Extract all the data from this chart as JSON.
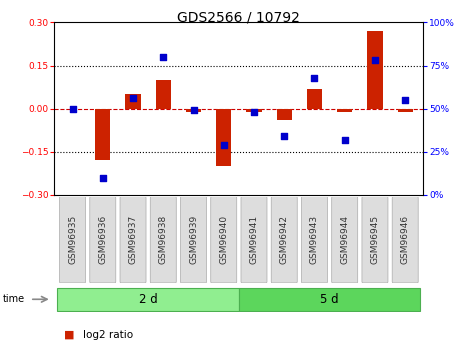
{
  "title": "GDS2566 / 10792",
  "samples": [
    "GSM96935",
    "GSM96936",
    "GSM96937",
    "GSM96938",
    "GSM96939",
    "GSM96940",
    "GSM96941",
    "GSM96942",
    "GSM96943",
    "GSM96944",
    "GSM96945",
    "GSM96946"
  ],
  "log2_ratio": [
    0.0,
    -0.18,
    0.05,
    0.1,
    -0.01,
    -0.2,
    -0.01,
    -0.04,
    0.07,
    -0.01,
    0.27,
    -0.01
  ],
  "percentile_rank": [
    50,
    10,
    56,
    80,
    49,
    29,
    48,
    34,
    68,
    32,
    78,
    55
  ],
  "groups": [
    {
      "label": "2 d",
      "start": 0,
      "end": 6,
      "color": "#90EE90",
      "edge": "#4CAF50"
    },
    {
      "label": "5 d",
      "start": 6,
      "end": 12,
      "color": "#5CD65C",
      "edge": "#4CAF50"
    }
  ],
  "ylim_left": [
    -0.3,
    0.3
  ],
  "ylim_right": [
    0,
    100
  ],
  "yticks_left": [
    -0.3,
    -0.15,
    0,
    0.15,
    0.3
  ],
  "yticks_right": [
    0,
    25,
    50,
    75,
    100
  ],
  "bar_color": "#CC2200",
  "scatter_color": "#0000CC",
  "hline_color": "#CC0000",
  "bg_color": "#FFFFFF",
  "title_fontsize": 10,
  "tick_fontsize": 6.5,
  "sample_fontsize": 6.5,
  "group_label_fontsize": 8.5,
  "legend_fontsize": 7.5,
  "bar_width": 0.5
}
